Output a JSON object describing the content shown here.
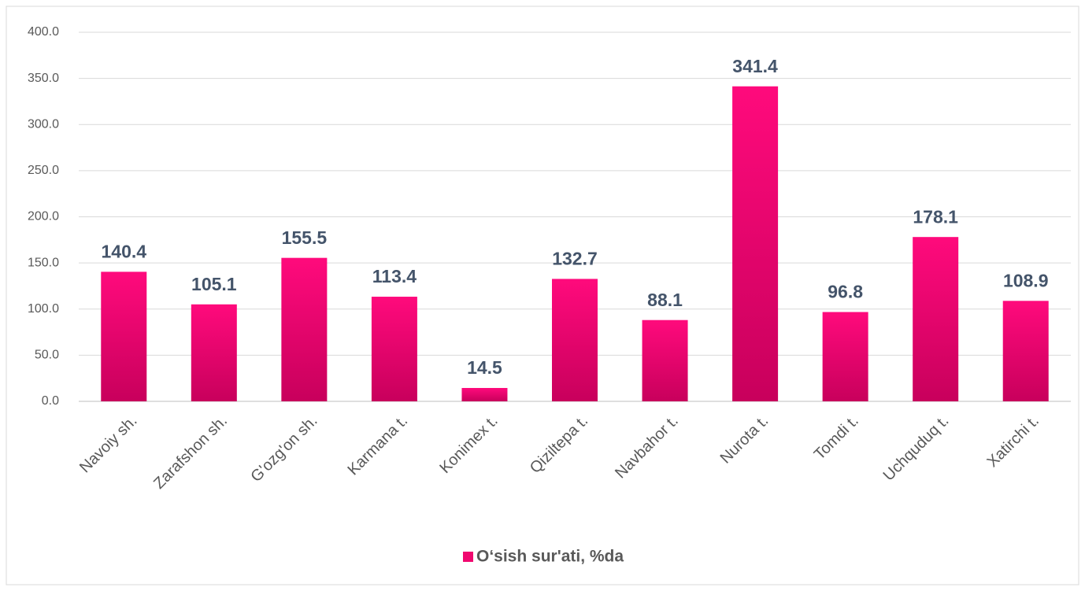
{
  "chart_data": {
    "type": "bar",
    "categories": [
      "Navoiy sh.",
      "Zarafshon sh.",
      "G'ozg'on sh.",
      "Karmana t.",
      "Konimex t.",
      "Qiziltepa t.",
      "Navbahor t.",
      "Nurota t.",
      "Tomdi t.",
      "Uchquduq t.",
      "Xatirchi t."
    ],
    "series": [
      {
        "name": "O‘sish sur'ati, %da",
        "color": "#f0086f",
        "values": [
          140.4,
          105.1,
          155.5,
          113.4,
          14.5,
          132.7,
          88.1,
          341.4,
          96.8,
          178.1,
          108.9
        ]
      }
    ],
    "ylim": [
      0,
      400
    ],
    "yticks": [
      {
        "value": 0,
        "label": "0.0"
      },
      {
        "value": 50,
        "label": "50.0"
      },
      {
        "value": 100,
        "label": "100.0"
      },
      {
        "value": 150,
        "label": "150.0"
      },
      {
        "value": 200,
        "label": "200.0"
      },
      {
        "value": 250,
        "label": "250.0"
      },
      {
        "value": 300,
        "label": "300.0"
      },
      {
        "value": 350,
        "label": "350.0"
      },
      {
        "value": 400,
        "label": "400.0"
      }
    ],
    "grid": true,
    "legend": "bottom"
  }
}
